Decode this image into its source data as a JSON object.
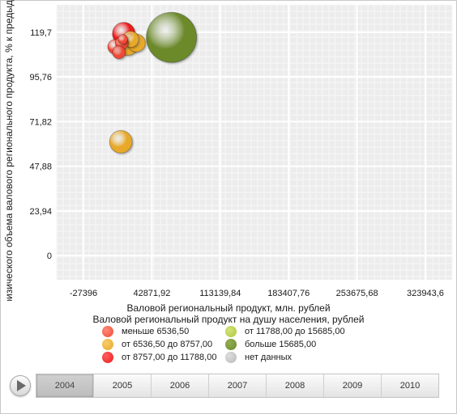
{
  "chart_data": {
    "type": "scatter",
    "variant": "bubble",
    "xlabel": "Валовой региональный продукт, млн. рублей",
    "ylabel": "Индекс физического объема валового регионального продукта, % к предыдущему году",
    "x_ticks": [
      -27396,
      42871.92,
      113139.84,
      183407.76,
      253675.68,
      323943.6
    ],
    "x_tick_labels": [
      "-27396",
      "42871,92",
      "113139,84",
      "183407,76",
      "253675,68",
      "323943,6"
    ],
    "y_ticks": [
      0,
      23.94,
      47.88,
      71.82,
      95.76,
      119.7
    ],
    "y_tick_labels": [
      "0",
      "23,94",
      "47,88",
      "71,82",
      "95,76",
      "119,7"
    ],
    "xlim": [
      -27396,
      323943.6
    ],
    "ylim": [
      0,
      119.7
    ],
    "grid": true,
    "legend_title": "Валовой региональный продукт на душу населения, рублей",
    "legend_position": "bottom",
    "legend": [
      {
        "label": "меньше 6536,50",
        "color": "#f04a36"
      },
      {
        "label": "от 6536,50 до 8757,00",
        "color": "#e8a92a"
      },
      {
        "label": "от 8757,00 до 11788,00",
        "color": "#ec1c1c"
      },
      {
        "label": "от 11788,00 до 15685,00",
        "color": "#acc93a"
      },
      {
        "label": "больше 15685,00",
        "color": "#6c8a2c"
      },
      {
        "label": "нет данных",
        "color": "#c0c0c0"
      }
    ],
    "points": [
      {
        "x": 63000,
        "y": 117,
        "size": 62,
        "color": "#6c8a2c"
      },
      {
        "x": 27000,
        "y": 114,
        "size": 22,
        "color": "#e8a92a"
      },
      {
        "x": 18000,
        "y": 113,
        "size": 26,
        "color": "#e8a92a"
      },
      {
        "x": 21000,
        "y": 116,
        "size": 20,
        "color": "#e8a92a"
      },
      {
        "x": 14000,
        "y": 119,
        "size": 28,
        "color": "#ec1c1c"
      },
      {
        "x": 12000,
        "y": 114,
        "size": 16,
        "color": "#f04a36"
      },
      {
        "x": 5000,
        "y": 112,
        "size": 18,
        "color": "#f04a36"
      },
      {
        "x": 9000,
        "y": 109,
        "size": 16,
        "color": "#f04a36"
      },
      {
        "x": 13000,
        "y": 116,
        "size": 12,
        "color": "#f04a36"
      },
      {
        "x": 11000,
        "y": 61,
        "size": 28,
        "color": "#e8a92a"
      }
    ]
  },
  "timeline": {
    "years": [
      "2004",
      "2005",
      "2006",
      "2007",
      "2008",
      "2009",
      "2010"
    ],
    "active_index": 0
  },
  "colors": {
    "plot_background": "#ececec",
    "grid": "#ffffff"
  }
}
